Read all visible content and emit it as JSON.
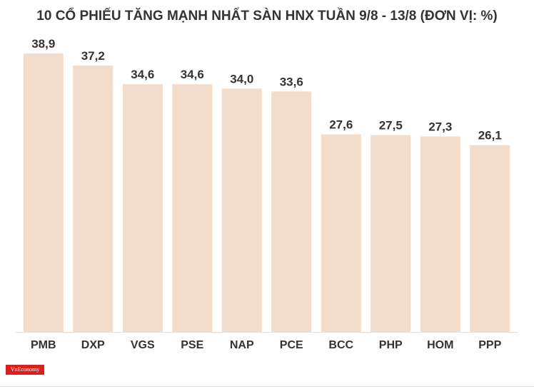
{
  "chart_data": {
    "type": "bar",
    "title": "10 CỔ PHIẾU TĂNG MẠNH NHẤT SÀN HNX TUẦN 9/8 - 13/8 (ĐƠN VỊ: %)",
    "categories": [
      "PMB",
      "DXP",
      "VGS",
      "PSE",
      "NAP",
      "PCE",
      "BCC",
      "PHP",
      "HOM",
      "PPP"
    ],
    "values": [
      38.9,
      37.2,
      34.6,
      34.6,
      34.0,
      33.6,
      27.6,
      27.5,
      27.3,
      26.1
    ],
    "value_labels": [
      "38,9",
      "37,2",
      "34,6",
      "34,6",
      "34,0",
      "33,6",
      "27,6",
      "27,5",
      "27,3",
      "26,1"
    ],
    "ylim": [
      0,
      38.9
    ],
    "grid": false,
    "bar_color": "#f4dccb"
  },
  "logo_text": "VnEconomy",
  "colors": {
    "logo_bg": "#d6211e",
    "text": "#333333"
  }
}
